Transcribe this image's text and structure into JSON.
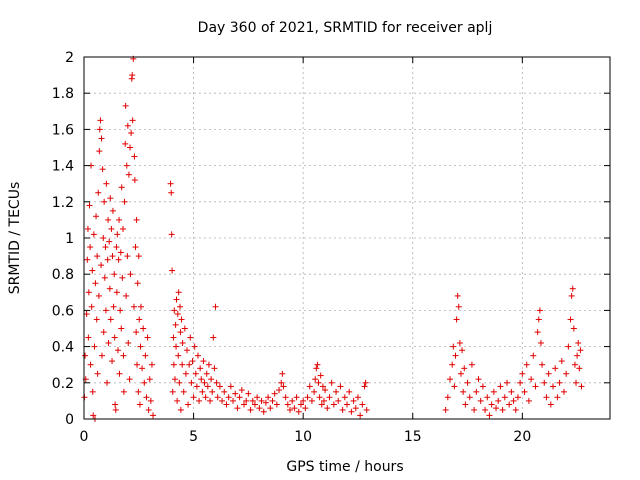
{
  "chart_data": {
    "type": "scatter",
    "title": "Day 360 of 2021, SRMTID for receiver aplj",
    "xlabel": "GPS time / hours",
    "ylabel": "SRMTID / TECUs",
    "xlim": [
      0,
      24
    ],
    "ylim": [
      0,
      2
    ],
    "xticks": [
      0,
      5,
      10,
      15,
      20
    ],
    "xtick_labels": [
      "0",
      "5",
      "10",
      "15",
      "20"
    ],
    "yticks": [
      0,
      0.2,
      0.4,
      0.6,
      0.8,
      1,
      1.2,
      1.4,
      1.6,
      1.8,
      2
    ],
    "ytick_labels": [
      "0",
      "0.2",
      "0.4",
      "0.6",
      "0.8",
      "1",
      "1.2",
      "1.4",
      "1.6",
      "1.8",
      "2"
    ],
    "grid": true,
    "marker": "+",
    "marker_color": "#e00000",
    "series": [
      {
        "name": "aplj",
        "points": [
          [
            0.02,
            0.12
          ],
          [
            0.05,
            0.35
          ],
          [
            0.08,
            0.22
          ],
          [
            0.12,
            0.58
          ],
          [
            0.15,
            0.88
          ],
          [
            0.18,
            1.05
          ],
          [
            0.2,
            0.45
          ],
          [
            0.22,
            0.7
          ],
          [
            0.25,
            1.18
          ],
          [
            0.28,
            0.95
          ],
          [
            0.3,
            0.3
          ],
          [
            0.32,
            1.4
          ],
          [
            0.35,
            0.62
          ],
          [
            0.38,
            0.82
          ],
          [
            0.4,
            0.15
          ],
          [
            0.42,
            0.02
          ],
          [
            0.45,
            1.02
          ],
          [
            0.48,
            0.4
          ],
          [
            0.5,
            0.0
          ],
          [
            0.52,
            0.75
          ],
          [
            0.55,
            1.12
          ],
          [
            0.58,
            0.55
          ],
          [
            0.6,
            0.9
          ],
          [
            0.62,
            0.25
          ],
          [
            0.65,
            1.25
          ],
          [
            0.68,
            0.68
          ],
          [
            0.7,
            1.48
          ],
          [
            0.72,
            1.6
          ],
          [
            0.75,
            1.65
          ],
          [
            0.78,
            0.85
          ],
          [
            0.8,
            1.55
          ],
          [
            0.82,
            0.35
          ],
          [
            0.85,
            1.38
          ],
          [
            0.88,
            1.0
          ],
          [
            0.9,
            0.48
          ],
          [
            0.92,
            1.2
          ],
          [
            0.95,
            0.78
          ],
          [
            0.98,
            0.95
          ],
          [
            1.0,
            0.6
          ],
          [
            1.02,
            1.3
          ],
          [
            1.05,
            0.2
          ],
          [
            1.08,
            0.88
          ],
          [
            1.1,
            1.1
          ],
          [
            1.12,
            0.42
          ],
          [
            1.15,
            0.98
          ],
          [
            1.18,
            0.72
          ],
          [
            1.2,
            1.22
          ],
          [
            1.22,
            0.55
          ],
          [
            1.25,
            1.05
          ],
          [
            1.28,
            0.32
          ],
          [
            1.3,
            0.9
          ],
          [
            1.32,
            1.15
          ],
          [
            1.35,
            0.62
          ],
          [
            1.38,
            0.8
          ],
          [
            1.4,
            0.45
          ],
          [
            1.42,
            0.08
          ],
          [
            1.45,
            0.05
          ],
          [
            1.48,
            0.95
          ],
          [
            1.5,
            0.7
          ],
          [
            1.52,
            1.02
          ],
          [
            1.55,
            0.38
          ],
          [
            1.58,
            0.88
          ],
          [
            1.6,
            1.1
          ],
          [
            1.62,
            0.25
          ],
          [
            1.65,
            0.6
          ],
          [
            1.68,
            0.92
          ],
          [
            1.7,
            0.5
          ],
          [
            1.72,
            1.28
          ],
          [
            1.75,
            0.78
          ],
          [
            1.78,
            1.05
          ],
          [
            1.8,
            0.35
          ],
          [
            1.82,
            0.15
          ],
          [
            1.85,
            1.2
          ],
          [
            1.88,
            1.52
          ],
          [
            1.9,
            1.73
          ],
          [
            1.92,
            0.68
          ],
          [
            1.95,
            1.4
          ],
          [
            1.98,
            0.9
          ],
          [
            2.0,
            1.62
          ],
          [
            2.02,
            0.42
          ],
          [
            2.05,
            1.35
          ],
          [
            2.08,
            0.22
          ],
          [
            2.1,
            1.5
          ],
          [
            2.12,
            0.8
          ],
          [
            2.15,
            1.58
          ],
          [
            2.18,
            1.88
          ],
          [
            2.2,
            1.9
          ],
          [
            2.22,
            1.65
          ],
          [
            2.25,
            1.99
          ],
          [
            2.28,
            0.62
          ],
          [
            2.3,
            1.45
          ],
          [
            2.32,
            1.32
          ],
          [
            2.35,
            0.95
          ],
          [
            2.38,
            0.48
          ],
          [
            2.4,
            1.1
          ],
          [
            2.42,
            0.3
          ],
          [
            2.45,
            0.75
          ],
          [
            2.48,
            0.15
          ],
          [
            2.5,
            0.9
          ],
          [
            2.52,
            0.55
          ],
          [
            2.55,
            0.08
          ],
          [
            2.58,
            0.4
          ],
          [
            2.6,
            0.62
          ],
          [
            2.65,
            0.28
          ],
          [
            2.7,
            0.5
          ],
          [
            2.75,
            0.2
          ],
          [
            2.8,
            0.35
          ],
          [
            2.85,
            0.12
          ],
          [
            2.9,
            0.45
          ],
          [
            2.95,
            0.05
          ],
          [
            3.0,
            0.22
          ],
          [
            3.05,
            0.1
          ],
          [
            3.1,
            0.3
          ],
          [
            3.15,
            0.02
          ],
          [
            3.95,
            1.3
          ],
          [
            3.98,
            1.25
          ],
          [
            4.0,
            1.02
          ],
          [
            4.02,
            0.82
          ],
          [
            4.05,
            0.15
          ],
          [
            4.08,
            0.45
          ],
          [
            4.1,
            0.3
          ],
          [
            4.12,
            0.6
          ],
          [
            4.15,
            0.22
          ],
          [
            4.18,
            0.52
          ],
          [
            4.2,
            0.4
          ],
          [
            4.22,
            0.66
          ],
          [
            4.25,
            0.1
          ],
          [
            4.28,
            0.58
          ],
          [
            4.3,
            0.35
          ],
          [
            4.32,
            0.7
          ],
          [
            4.35,
            0.2
          ],
          [
            4.38,
            0.62
          ],
          [
            4.4,
            0.48
          ],
          [
            4.42,
            0.05
          ],
          [
            4.45,
            0.55
          ],
          [
            4.48,
            0.3
          ],
          [
            4.5,
            0.42
          ],
          [
            4.55,
            0.15
          ],
          [
            4.6,
            0.5
          ],
          [
            4.65,
            0.25
          ],
          [
            4.7,
            0.38
          ],
          [
            4.75,
            0.08
          ],
          [
            4.8,
            0.3
          ],
          [
            4.85,
            0.45
          ],
          [
            4.9,
            0.2
          ],
          [
            4.95,
            0.32
          ],
          [
            5.0,
            0.12
          ],
          [
            5.05,
            0.4
          ],
          [
            5.1,
            0.25
          ],
          [
            5.15,
            0.18
          ],
          [
            5.2,
            0.35
          ],
          [
            5.25,
            0.1
          ],
          [
            5.3,
            0.28
          ],
          [
            5.35,
            0.22
          ],
          [
            5.4,
            0.15
          ],
          [
            5.45,
            0.32
          ],
          [
            5.5,
            0.2
          ],
          [
            5.55,
            0.12
          ],
          [
            5.6,
            0.25
          ],
          [
            5.65,
            0.18
          ],
          [
            5.7,
            0.3
          ],
          [
            5.75,
            0.1
          ],
          [
            5.8,
            0.22
          ],
          [
            5.85,
            0.15
          ],
          [
            5.9,
            0.45
          ],
          [
            5.95,
            0.28
          ],
          [
            6.0,
            0.62
          ],
          [
            6.05,
            0.2
          ],
          [
            6.1,
            0.12
          ],
          [
            6.2,
            0.18
          ],
          [
            6.3,
            0.1
          ],
          [
            6.4,
            0.15
          ],
          [
            6.5,
            0.08
          ],
          [
            6.6,
            0.12
          ],
          [
            6.7,
            0.18
          ],
          [
            6.8,
            0.1
          ],
          [
            6.9,
            0.14
          ],
          [
            7.0,
            0.06
          ],
          [
            7.1,
            0.12
          ],
          [
            7.2,
            0.16
          ],
          [
            7.3,
            0.08
          ],
          [
            7.4,
            0.1
          ],
          [
            7.5,
            0.14
          ],
          [
            7.6,
            0.05
          ],
          [
            7.7,
            0.1
          ],
          [
            7.8,
            0.08
          ],
          [
            7.9,
            0.12
          ],
          [
            8.0,
            0.06
          ],
          [
            8.1,
            0.1
          ],
          [
            8.2,
            0.04
          ],
          [
            8.3,
            0.09
          ],
          [
            8.4,
            0.12
          ],
          [
            8.5,
            0.06
          ],
          [
            8.6,
            0.1
          ],
          [
            8.7,
            0.14
          ],
          [
            8.8,
            0.08
          ],
          [
            8.9,
            0.16
          ],
          [
            9.0,
            0.2
          ],
          [
            9.05,
            0.25
          ],
          [
            9.1,
            0.18
          ],
          [
            9.2,
            0.12
          ],
          [
            9.3,
            0.08
          ],
          [
            9.4,
            0.05
          ],
          [
            9.5,
            0.1
          ],
          [
            9.6,
            0.06
          ],
          [
            9.7,
            0.12
          ],
          [
            9.8,
            0.04
          ],
          [
            9.9,
            0.08
          ],
          [
            10.0,
            0.1
          ],
          [
            10.1,
            0.06
          ],
          [
            10.2,
            0.12
          ],
          [
            10.3,
            0.18
          ],
          [
            10.4,
            0.1
          ],
          [
            10.5,
            0.15
          ],
          [
            10.55,
            0.22
          ],
          [
            10.6,
            0.28
          ],
          [
            10.65,
            0.3
          ],
          [
            10.7,
            0.2
          ],
          [
            10.75,
            0.12
          ],
          [
            10.8,
            0.24
          ],
          [
            10.85,
            0.08
          ],
          [
            10.9,
            0.18
          ],
          [
            10.95,
            0.1
          ],
          [
            11.0,
            0.16
          ],
          [
            11.1,
            0.06
          ],
          [
            11.2,
            0.12
          ],
          [
            11.3,
            0.2
          ],
          [
            11.4,
            0.08
          ],
          [
            11.5,
            0.15
          ],
          [
            11.6,
            0.1
          ],
          [
            11.7,
            0.18
          ],
          [
            11.8,
            0.05
          ],
          [
            11.9,
            0.12
          ],
          [
            12.0,
            0.08
          ],
          [
            12.1,
            0.15
          ],
          [
            12.2,
            0.04
          ],
          [
            12.3,
            0.1
          ],
          [
            12.4,
            0.06
          ],
          [
            12.5,
            0.12
          ],
          [
            12.6,
            0.02
          ],
          [
            12.7,
            0.08
          ],
          [
            12.8,
            0.18
          ],
          [
            12.85,
            0.2
          ],
          [
            12.9,
            0.05
          ],
          [
            16.5,
            0.05
          ],
          [
            16.6,
            0.12
          ],
          [
            16.7,
            0.22
          ],
          [
            16.8,
            0.3
          ],
          [
            16.85,
            0.4
          ],
          [
            16.9,
            0.18
          ],
          [
            16.95,
            0.35
          ],
          [
            17.0,
            0.55
          ],
          [
            17.05,
            0.68
          ],
          [
            17.1,
            0.62
          ],
          [
            17.15,
            0.42
          ],
          [
            17.2,
            0.25
          ],
          [
            17.25,
            0.38
          ],
          [
            17.3,
            0.15
          ],
          [
            17.35,
            0.28
          ],
          [
            17.4,
            0.08
          ],
          [
            17.5,
            0.2
          ],
          [
            17.6,
            0.12
          ],
          [
            17.7,
            0.3
          ],
          [
            17.8,
            0.05
          ],
          [
            17.9,
            0.15
          ],
          [
            18.0,
            0.22
          ],
          [
            18.1,
            0.1
          ],
          [
            18.2,
            0.18
          ],
          [
            18.3,
            0.05
          ],
          [
            18.4,
            0.12
          ],
          [
            18.5,
            0.02
          ],
          [
            18.6,
            0.08
          ],
          [
            18.7,
            0.15
          ],
          [
            18.8,
            0.06
          ],
          [
            18.9,
            0.1
          ],
          [
            19.0,
            0.18
          ],
          [
            19.1,
            0.05
          ],
          [
            19.2,
            0.12
          ],
          [
            19.3,
            0.2
          ],
          [
            19.4,
            0.08
          ],
          [
            19.5,
            0.15
          ],
          [
            19.6,
            0.1
          ],
          [
            19.7,
            0.05
          ],
          [
            19.8,
            0.12
          ],
          [
            19.9,
            0.2
          ],
          [
            20.0,
            0.25
          ],
          [
            20.1,
            0.15
          ],
          [
            20.2,
            0.3
          ],
          [
            20.3,
            0.1
          ],
          [
            20.4,
            0.22
          ],
          [
            20.5,
            0.35
          ],
          [
            20.6,
            0.18
          ],
          [
            20.7,
            0.48
          ],
          [
            20.75,
            0.55
          ],
          [
            20.8,
            0.6
          ],
          [
            20.85,
            0.42
          ],
          [
            20.9,
            0.3
          ],
          [
            21.0,
            0.2
          ],
          [
            21.1,
            0.12
          ],
          [
            21.2,
            0.25
          ],
          [
            21.3,
            0.08
          ],
          [
            21.4,
            0.18
          ],
          [
            21.5,
            0.28
          ],
          [
            21.6,
            0.12
          ],
          [
            21.7,
            0.2
          ],
          [
            21.8,
            0.32
          ],
          [
            21.9,
            0.15
          ],
          [
            22.0,
            0.25
          ],
          [
            22.1,
            0.4
          ],
          [
            22.2,
            0.55
          ],
          [
            22.25,
            0.68
          ],
          [
            22.3,
            0.72
          ],
          [
            22.35,
            0.5
          ],
          [
            22.4,
            0.3
          ],
          [
            22.45,
            0.2
          ],
          [
            22.5,
            0.35
          ],
          [
            22.55,
            0.42
          ],
          [
            22.6,
            0.28
          ],
          [
            22.65,
            0.38
          ],
          [
            22.7,
            0.18
          ]
        ]
      }
    ]
  }
}
